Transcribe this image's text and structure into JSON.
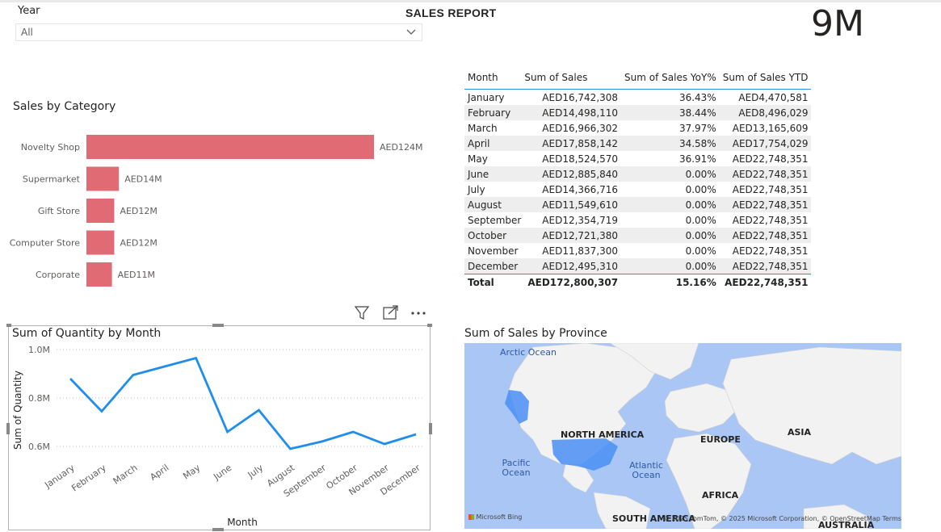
{
  "slicer": {
    "label": "Year",
    "value": "All"
  },
  "report_title": "SALES REPORT",
  "card": {
    "value": "9M"
  },
  "category_chart": {
    "title": "Sales by Category",
    "color": "#e06b75",
    "chart_data": {
      "type": "bar",
      "orientation": "horizontal",
      "categories": [
        "Novelty Shop",
        "Supermarket",
        "Gift Store",
        "Computer Store",
        "Corporate"
      ],
      "values": [
        124,
        14,
        12,
        12,
        11
      ],
      "value_labels": [
        "AED124M",
        "AED14M",
        "AED12M",
        "AED12M",
        "AED11M"
      ]
    }
  },
  "table": {
    "headers": [
      "Month",
      "Sum of Sales",
      "Sum of Sales YoY%",
      "Sum of Sales YTD"
    ],
    "rows": [
      [
        "January",
        "AED16,742,308",
        "36.43%",
        "AED4,470,581"
      ],
      [
        "February",
        "AED14,498,110",
        "38.44%",
        "AED8,496,029"
      ],
      [
        "March",
        "AED16,966,302",
        "37.97%",
        "AED13,165,609"
      ],
      [
        "April",
        "AED17,858,142",
        "34.58%",
        "AED17,754,029"
      ],
      [
        "May",
        "AED18,524,570",
        "36.91%",
        "AED22,748,351"
      ],
      [
        "June",
        "AED12,885,840",
        "0.00%",
        "AED22,748,351"
      ],
      [
        "July",
        "AED14,366,716",
        "0.00%",
        "AED22,748,351"
      ],
      [
        "August",
        "AED11,549,610",
        "0.00%",
        "AED22,748,351"
      ],
      [
        "September",
        "AED12,354,719",
        "0.00%",
        "AED22,748,351"
      ],
      [
        "October",
        "AED12,721,380",
        "0.00%",
        "AED22,748,351"
      ],
      [
        "November",
        "AED11,837,300",
        "0.00%",
        "AED22,748,351"
      ],
      [
        "December",
        "AED12,495,310",
        "0.00%",
        "AED22,748,351"
      ]
    ],
    "total": [
      "Total",
      "AED172,800,307",
      "15.16%",
      "AED22,748,351"
    ]
  },
  "line_chart": {
    "title": "Sum of Quantity by Month",
    "color": "#1f8ded",
    "icons": [
      "filter-icon",
      "focus-mode-icon",
      "more-options-icon"
    ],
    "chart_data": {
      "type": "line",
      "xlabel": "Month",
      "ylabel": "Sum of Quantity",
      "categories": [
        "January",
        "February",
        "March",
        "April",
        "May",
        "June",
        "July",
        "August",
        "September",
        "October",
        "November",
        "December"
      ],
      "values": [
        0.88,
        0.745,
        0.895,
        0.93,
        0.965,
        0.66,
        0.75,
        0.59,
        0.62,
        0.66,
        0.61,
        0.65
      ],
      "yticks": [
        "1.0M",
        "0.8M",
        "0.6M"
      ],
      "ytick_values": [
        1.0,
        0.8,
        0.6
      ],
      "ylim": [
        0.5,
        1.05
      ],
      "grid": true
    }
  },
  "map": {
    "title": "Sum of Sales by Province",
    "ocean_labels": [
      "Arctic Ocean",
      "Pacific Ocean",
      "Atlantic Ocean"
    ],
    "continent_labels": [
      "NORTH AMERICA",
      "EUROPE",
      "ASIA",
      "AFRICA",
      "SOUTH AMERICA",
      "AUSTRALIA"
    ],
    "credit": "© 2025 TomTom, © 2025 Microsoft Corporation, © OpenStreetMap  Terms",
    "logo": "Microsoft Bing",
    "highlight_color": "#4a8ff5"
  }
}
